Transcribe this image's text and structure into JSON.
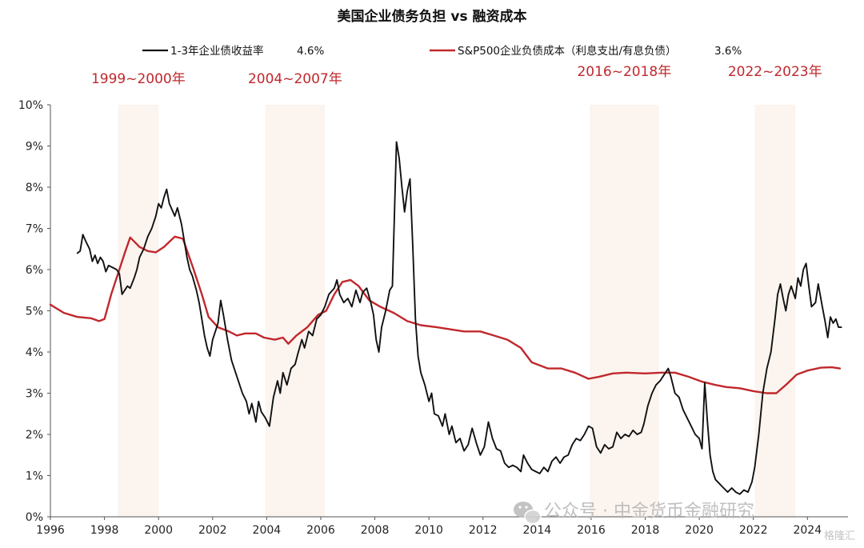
{
  "chart_data": {
    "type": "line",
    "title": "美国企业债务负担 vs 融资成本",
    "xlim": [
      1996,
      2025.5
    ],
    "ylim": [
      0,
      10
    ],
    "y_ticks": [
      "0%",
      "1%",
      "2%",
      "3%",
      "4%",
      "5%",
      "6%",
      "7%",
      "8%",
      "9%",
      "10%"
    ],
    "x_ticks": [
      "1996",
      "1998",
      "2000",
      "2002",
      "2004",
      "2006",
      "2008",
      "2010",
      "2012",
      "2014",
      "2016",
      "2018",
      "2020",
      "2022",
      "2024"
    ],
    "grid": false,
    "legend_position": "top",
    "shaded_periods": [
      {
        "label": "1999~2000年",
        "start": 1998.5,
        "end": 2000.0
      },
      {
        "label": "2004~2007年",
        "start": 2003.95,
        "end": 2006.15
      },
      {
        "label": "2016~2018年",
        "start": 2015.95,
        "end": 2018.5
      },
      {
        "label": "2022~2023年",
        "start": 2022.05,
        "end": 2023.55
      }
    ],
    "series": [
      {
        "name": "1-3年企业债收益率",
        "latest": "4.6%",
        "color": "#111111",
        "points": [
          [
            1997.0,
            6.4
          ],
          [
            1997.1,
            6.45
          ],
          [
            1997.2,
            6.85
          ],
          [
            1997.3,
            6.7
          ],
          [
            1997.45,
            6.5
          ],
          [
            1997.55,
            6.2
          ],
          [
            1997.65,
            6.35
          ],
          [
            1997.75,
            6.15
          ],
          [
            1997.85,
            6.3
          ],
          [
            1997.95,
            6.2
          ],
          [
            1998.05,
            5.95
          ],
          [
            1998.15,
            6.1
          ],
          [
            1998.3,
            6.05
          ],
          [
            1998.45,
            6.0
          ],
          [
            1998.55,
            5.9
          ],
          [
            1998.65,
            5.4
          ],
          [
            1998.75,
            5.5
          ],
          [
            1998.85,
            5.6
          ],
          [
            1998.95,
            5.55
          ],
          [
            1999.1,
            5.8
          ],
          [
            1999.2,
            6.0
          ],
          [
            1999.3,
            6.3
          ],
          [
            1999.45,
            6.5
          ],
          [
            1999.6,
            6.8
          ],
          [
            1999.75,
            7.0
          ],
          [
            1999.9,
            7.3
          ],
          [
            2000.0,
            7.6
          ],
          [
            2000.1,
            7.5
          ],
          [
            2000.2,
            7.75
          ],
          [
            2000.3,
            7.95
          ],
          [
            2000.4,
            7.6
          ],
          [
            2000.5,
            7.45
          ],
          [
            2000.6,
            7.3
          ],
          [
            2000.7,
            7.5
          ],
          [
            2000.85,
            7.1
          ],
          [
            2000.95,
            6.7
          ],
          [
            2001.05,
            6.3
          ],
          [
            2001.15,
            6.0
          ],
          [
            2001.25,
            5.85
          ],
          [
            2001.4,
            5.5
          ],
          [
            2001.5,
            5.2
          ],
          [
            2001.6,
            4.8
          ],
          [
            2001.7,
            4.4
          ],
          [
            2001.8,
            4.1
          ],
          [
            2001.9,
            3.9
          ],
          [
            2002.0,
            4.3
          ],
          [
            2002.1,
            4.5
          ],
          [
            2002.2,
            4.7
          ],
          [
            2002.3,
            5.25
          ],
          [
            2002.4,
            4.9
          ],
          [
            2002.55,
            4.3
          ],
          [
            2002.7,
            3.8
          ],
          [
            2002.85,
            3.5
          ],
          [
            2002.95,
            3.3
          ],
          [
            2003.1,
            3.0
          ],
          [
            2003.25,
            2.8
          ],
          [
            2003.35,
            2.5
          ],
          [
            2003.45,
            2.75
          ],
          [
            2003.6,
            2.3
          ],
          [
            2003.7,
            2.8
          ],
          [
            2003.8,
            2.55
          ],
          [
            2003.95,
            2.4
          ],
          [
            2004.1,
            2.2
          ],
          [
            2004.25,
            2.9
          ],
          [
            2004.4,
            3.3
          ],
          [
            2004.5,
            3.0
          ],
          [
            2004.6,
            3.5
          ],
          [
            2004.75,
            3.2
          ],
          [
            2004.9,
            3.6
          ],
          [
            2005.05,
            3.7
          ],
          [
            2005.15,
            3.95
          ],
          [
            2005.3,
            4.3
          ],
          [
            2005.4,
            4.1
          ],
          [
            2005.55,
            4.5
          ],
          [
            2005.7,
            4.4
          ],
          [
            2005.85,
            4.8
          ],
          [
            2006.0,
            4.9
          ],
          [
            2006.15,
            5.1
          ],
          [
            2006.3,
            5.4
          ],
          [
            2006.5,
            5.55
          ],
          [
            2006.6,
            5.75
          ],
          [
            2006.7,
            5.4
          ],
          [
            2006.85,
            5.2
          ],
          [
            2007.0,
            5.3
          ],
          [
            2007.15,
            5.1
          ],
          [
            2007.3,
            5.5
          ],
          [
            2007.45,
            5.2
          ],
          [
            2007.55,
            5.45
          ],
          [
            2007.7,
            5.55
          ],
          [
            2007.85,
            5.2
          ],
          [
            2007.95,
            4.9
          ],
          [
            2008.05,
            4.3
          ],
          [
            2008.15,
            4.0
          ],
          [
            2008.25,
            4.6
          ],
          [
            2008.4,
            5.0
          ],
          [
            2008.55,
            5.5
          ],
          [
            2008.65,
            5.6
          ],
          [
            2008.8,
            9.1
          ],
          [
            2008.9,
            8.7
          ],
          [
            2009.0,
            8.0
          ],
          [
            2009.1,
            7.4
          ],
          [
            2009.2,
            7.9
          ],
          [
            2009.3,
            8.2
          ],
          [
            2009.4,
            6.6
          ],
          [
            2009.5,
            4.8
          ],
          [
            2009.6,
            3.9
          ],
          [
            2009.7,
            3.5
          ],
          [
            2009.85,
            3.2
          ],
          [
            2010.0,
            2.8
          ],
          [
            2010.1,
            3.0
          ],
          [
            2010.2,
            2.5
          ],
          [
            2010.35,
            2.45
          ],
          [
            2010.5,
            2.2
          ],
          [
            2010.6,
            2.5
          ],
          [
            2010.75,
            2.0
          ],
          [
            2010.85,
            2.2
          ],
          [
            2011.0,
            1.8
          ],
          [
            2011.15,
            1.9
          ],
          [
            2011.3,
            1.6
          ],
          [
            2011.45,
            1.75
          ],
          [
            2011.6,
            2.15
          ],
          [
            2011.75,
            1.8
          ],
          [
            2011.9,
            1.5
          ],
          [
            2012.05,
            1.7
          ],
          [
            2012.2,
            2.3
          ],
          [
            2012.35,
            1.9
          ],
          [
            2012.5,
            1.65
          ],
          [
            2012.65,
            1.6
          ],
          [
            2012.8,
            1.3
          ],
          [
            2012.95,
            1.2
          ],
          [
            2013.1,
            1.25
          ],
          [
            2013.25,
            1.2
          ],
          [
            2013.4,
            1.1
          ],
          [
            2013.5,
            1.5
          ],
          [
            2013.65,
            1.3
          ],
          [
            2013.8,
            1.15
          ],
          [
            2013.95,
            1.1
          ],
          [
            2014.1,
            1.05
          ],
          [
            2014.25,
            1.2
          ],
          [
            2014.4,
            1.1
          ],
          [
            2014.55,
            1.35
          ],
          [
            2014.7,
            1.45
          ],
          [
            2014.85,
            1.3
          ],
          [
            2015.0,
            1.45
          ],
          [
            2015.15,
            1.5
          ],
          [
            2015.3,
            1.75
          ],
          [
            2015.45,
            1.9
          ],
          [
            2015.6,
            1.85
          ],
          [
            2015.75,
            2.0
          ],
          [
            2015.9,
            2.2
          ],
          [
            2016.05,
            2.15
          ],
          [
            2016.2,
            1.7
          ],
          [
            2016.35,
            1.55
          ],
          [
            2016.5,
            1.75
          ],
          [
            2016.65,
            1.65
          ],
          [
            2016.8,
            1.7
          ],
          [
            2016.95,
            2.05
          ],
          [
            2017.1,
            1.9
          ],
          [
            2017.25,
            2.0
          ],
          [
            2017.4,
            1.95
          ],
          [
            2017.55,
            2.1
          ],
          [
            2017.7,
            2.0
          ],
          [
            2017.85,
            2.05
          ],
          [
            2017.95,
            2.25
          ],
          [
            2018.1,
            2.7
          ],
          [
            2018.25,
            3.0
          ],
          [
            2018.4,
            3.2
          ],
          [
            2018.55,
            3.3
          ],
          [
            2018.7,
            3.45
          ],
          [
            2018.85,
            3.6
          ],
          [
            2018.95,
            3.4
          ],
          [
            2019.1,
            3.0
          ],
          [
            2019.25,
            2.9
          ],
          [
            2019.4,
            2.6
          ],
          [
            2019.55,
            2.4
          ],
          [
            2019.7,
            2.2
          ],
          [
            2019.85,
            2.0
          ],
          [
            2020.0,
            1.9
          ],
          [
            2020.1,
            1.65
          ],
          [
            2020.2,
            3.25
          ],
          [
            2020.3,
            2.3
          ],
          [
            2020.4,
            1.5
          ],
          [
            2020.5,
            1.1
          ],
          [
            2020.6,
            0.9
          ],
          [
            2020.75,
            0.8
          ],
          [
            2020.9,
            0.7
          ],
          [
            2021.05,
            0.6
          ],
          [
            2021.2,
            0.7
          ],
          [
            2021.35,
            0.6
          ],
          [
            2021.5,
            0.55
          ],
          [
            2021.65,
            0.65
          ],
          [
            2021.8,
            0.6
          ],
          [
            2021.95,
            0.85
          ],
          [
            2022.05,
            1.2
          ],
          [
            2022.2,
            2.0
          ],
          [
            2022.35,
            3.0
          ],
          [
            2022.5,
            3.6
          ],
          [
            2022.65,
            4.0
          ],
          [
            2022.8,
            4.8
          ],
          [
            2022.9,
            5.4
          ],
          [
            2023.0,
            5.65
          ],
          [
            2023.1,
            5.3
          ],
          [
            2023.2,
            5.0
          ],
          [
            2023.3,
            5.4
          ],
          [
            2023.4,
            5.6
          ],
          [
            2023.55,
            5.3
          ],
          [
            2023.65,
            5.8
          ],
          [
            2023.75,
            5.6
          ],
          [
            2023.85,
            6.0
          ],
          [
            2023.95,
            6.15
          ],
          [
            2024.05,
            5.6
          ],
          [
            2024.15,
            5.1
          ],
          [
            2024.3,
            5.2
          ],
          [
            2024.4,
            5.65
          ],
          [
            2024.55,
            5.1
          ],
          [
            2024.65,
            4.75
          ],
          [
            2024.75,
            4.35
          ],
          [
            2024.85,
            4.85
          ],
          [
            2024.95,
            4.7
          ],
          [
            2025.05,
            4.8
          ],
          [
            2025.15,
            4.6
          ],
          [
            2025.25,
            4.6
          ]
        ]
      },
      {
        "name": "S&P500企业负债成本（利息支出/有息负债）",
        "latest": "3.6%",
        "color": "#c0282d",
        "points": [
          [
            1996.0,
            5.15
          ],
          [
            1996.5,
            4.95
          ],
          [
            1997.0,
            4.85
          ],
          [
            1997.5,
            4.82
          ],
          [
            1997.8,
            4.75
          ],
          [
            1998.0,
            4.8
          ],
          [
            1998.25,
            5.4
          ],
          [
            1998.5,
            5.9
          ],
          [
            1998.75,
            6.4
          ],
          [
            1998.95,
            6.78
          ],
          [
            1999.3,
            6.55
          ],
          [
            1999.6,
            6.45
          ],
          [
            1999.9,
            6.42
          ],
          [
            2000.2,
            6.55
          ],
          [
            2000.6,
            6.8
          ],
          [
            2000.9,
            6.75
          ],
          [
            2001.3,
            6.0
          ],
          [
            2001.6,
            5.4
          ],
          [
            2001.85,
            4.85
          ],
          [
            2002.2,
            4.6
          ],
          [
            2002.6,
            4.5
          ],
          [
            2002.9,
            4.4
          ],
          [
            2003.2,
            4.45
          ],
          [
            2003.6,
            4.45
          ],
          [
            2003.9,
            4.35
          ],
          [
            2004.3,
            4.3
          ],
          [
            2004.6,
            4.35
          ],
          [
            2004.8,
            4.2
          ],
          [
            2005.1,
            4.4
          ],
          [
            2005.5,
            4.6
          ],
          [
            2005.9,
            4.9
          ],
          [
            2006.2,
            5.0
          ],
          [
            2006.5,
            5.4
          ],
          [
            2006.8,
            5.7
          ],
          [
            2007.1,
            5.75
          ],
          [
            2007.4,
            5.6
          ],
          [
            2007.8,
            5.25
          ],
          [
            2008.2,
            5.1
          ],
          [
            2008.7,
            4.95
          ],
          [
            2009.2,
            4.75
          ],
          [
            2009.7,
            4.65
          ],
          [
            2010.3,
            4.6
          ],
          [
            2010.8,
            4.55
          ],
          [
            2011.3,
            4.5
          ],
          [
            2011.9,
            4.5
          ],
          [
            2012.4,
            4.4
          ],
          [
            2012.9,
            4.3
          ],
          [
            2013.4,
            4.1
          ],
          [
            2013.8,
            3.75
          ],
          [
            2014.4,
            3.6
          ],
          [
            2014.9,
            3.6
          ],
          [
            2015.4,
            3.5
          ],
          [
            2015.9,
            3.35
          ],
          [
            2016.3,
            3.4
          ],
          [
            2016.8,
            3.48
          ],
          [
            2017.3,
            3.5
          ],
          [
            2018.0,
            3.48
          ],
          [
            2018.6,
            3.5
          ],
          [
            2019.1,
            3.5
          ],
          [
            2019.6,
            3.4
          ],
          [
            2020.1,
            3.28
          ],
          [
            2020.6,
            3.2
          ],
          [
            2021.0,
            3.15
          ],
          [
            2021.5,
            3.12
          ],
          [
            2022.0,
            3.05
          ],
          [
            2022.5,
            3.0
          ],
          [
            2022.85,
            3.0
          ],
          [
            2023.2,
            3.2
          ],
          [
            2023.6,
            3.45
          ],
          [
            2024.0,
            3.55
          ],
          [
            2024.5,
            3.62
          ],
          [
            2024.9,
            3.63
          ],
          [
            2025.2,
            3.6
          ]
        ]
      }
    ]
  },
  "watermark": {
    "text": "公众号 · 中金货币金融研究",
    "small": "格隆汇"
  }
}
